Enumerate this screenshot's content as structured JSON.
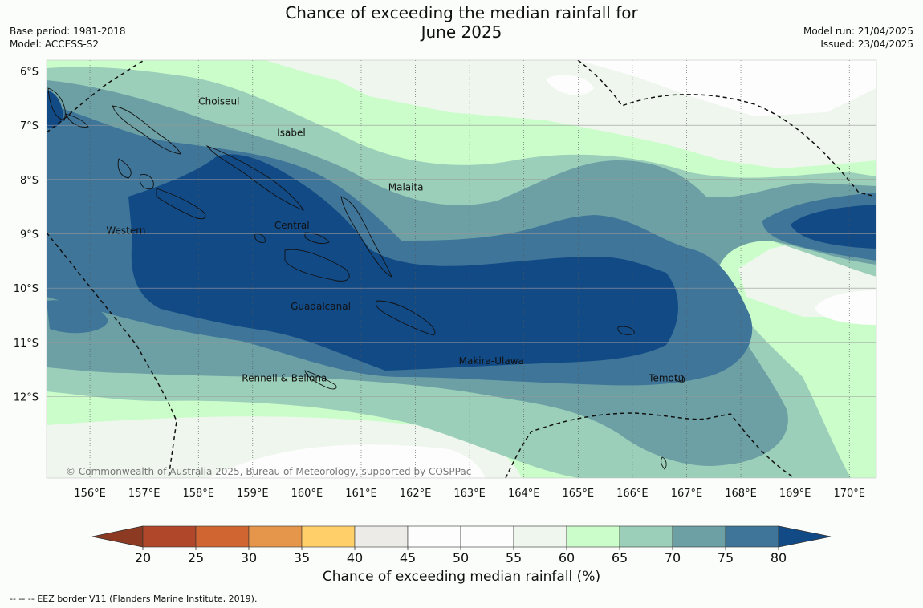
{
  "header": {
    "title_line1": "Chance of exceeding the median rainfall for",
    "title_line2": "June 2025",
    "base_period": "Base period: 1981-2018",
    "model": "Model: ACCESS-S2",
    "model_run": "Model run: 21/04/2025",
    "issued": "Issued: 23/04/2025"
  },
  "map": {
    "lon_range": [
      155.2,
      170.5
    ],
    "lat_range": [
      -13.5,
      -5.8
    ],
    "lon_ticks": [
      {
        "value": 156,
        "label": "156°E"
      },
      {
        "value": 157,
        "label": "157°E"
      },
      {
        "value": 158,
        "label": "158°E"
      },
      {
        "value": 159,
        "label": "159°E"
      },
      {
        "value": 160,
        "label": "160°E"
      },
      {
        "value": 161,
        "label": "161°E"
      },
      {
        "value": 162,
        "label": "162°E"
      },
      {
        "value": 163,
        "label": "163°E"
      },
      {
        "value": 164,
        "label": "164°E"
      },
      {
        "value": 165,
        "label": "165°E"
      },
      {
        "value": 166,
        "label": "166°E"
      },
      {
        "value": 167,
        "label": "167°E"
      },
      {
        "value": 168,
        "label": "168°E"
      },
      {
        "value": 169,
        "label": "169°E"
      },
      {
        "value": 170,
        "label": "170°E"
      }
    ],
    "lat_ticks": [
      {
        "value": -6,
        "label": "6°S"
      },
      {
        "value": -7,
        "label": "7°S"
      },
      {
        "value": -8,
        "label": "8°S"
      },
      {
        "value": -9,
        "label": "9°S"
      },
      {
        "value": -10,
        "label": "10°S"
      },
      {
        "value": -11,
        "label": "11°S"
      },
      {
        "value": -12,
        "label": "12°S"
      }
    ],
    "place_labels": [
      {
        "name": "Choiseul",
        "lon": 158.0,
        "lat": -6.62
      },
      {
        "name": "Isabel",
        "lon": 159.45,
        "lat": -7.2
      },
      {
        "name": "Malaita",
        "lon": 161.5,
        "lat": -8.2
      },
      {
        "name": "Central",
        "lon": 159.4,
        "lat": -8.9
      },
      {
        "name": "Western",
        "lon": 156.3,
        "lat": -9.0
      },
      {
        "name": "Guadalcanal",
        "lon": 159.7,
        "lat": -10.4
      },
      {
        "name": "Makira-Ulawa",
        "lon": 162.8,
        "lat": -11.4
      },
      {
        "name": "Rennell & Bellona",
        "lon": 158.8,
        "lat": -11.72
      },
      {
        "name": "Temotu",
        "lon": 166.3,
        "lat": -11.72
      }
    ],
    "copyright": "© Commonwealth of Australia 2025, Bureau of Meteorology, supported by COSPPac"
  },
  "legend": {
    "title": "Chance of exceeding median rainfall (%)",
    "ticks": [
      "20",
      "25",
      "30",
      "35",
      "40",
      "45",
      "50",
      "55",
      "60",
      "65",
      "70",
      "75",
      "80"
    ],
    "low_arrow_color": "#8c3a22",
    "high_arrow_color": "#124a86",
    "bin_colors": [
      "#b0472a",
      "#d06532",
      "#e5964a",
      "#ffd06a",
      "#ecebe7",
      "#fcfdfc",
      "#fcfdfc",
      "#eef6ed",
      "#cbfdcb",
      "#9ccfb9",
      "#6ca0a4",
      "#3e7599"
    ]
  },
  "footer": {
    "eez_note": "--  --  -- EEZ border V11 (Flanders Marine Institute, 2019)."
  }
}
